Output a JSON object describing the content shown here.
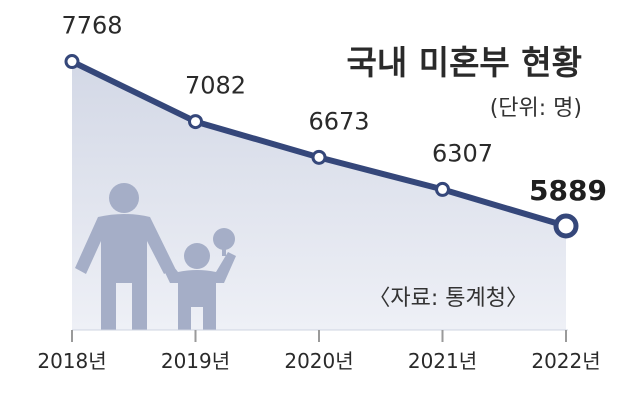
{
  "title": "국내 미혼부 현황",
  "unit": "(단위: 명)",
  "source": "〈자료: 통계청〉",
  "colors": {
    "line": "#35477a",
    "area_top": "#d3d8e6",
    "area_bottom": "#eef0f6",
    "figure": "#a5aec7",
    "tick": "#9a9a9a"
  },
  "icons": [
    "father-figure-icon",
    "child-figure-icon",
    "balloon-icon"
  ],
  "chart_data": {
    "type": "area",
    "title": "국내 미혼부 현황",
    "unit": "(단위: 명)",
    "categories": [
      "2018년",
      "2019년",
      "2020년",
      "2021년",
      "2022년"
    ],
    "series": [
      {
        "values": [
          7768,
          7082,
          6673,
          6307,
          5889
        ]
      }
    ],
    "labels": [
      "7768",
      "7082",
      "6673",
      "6307",
      "5889"
    ],
    "highlight_last": true,
    "ylim": [
      4700,
      7900
    ],
    "grid": false,
    "legend": "none"
  }
}
